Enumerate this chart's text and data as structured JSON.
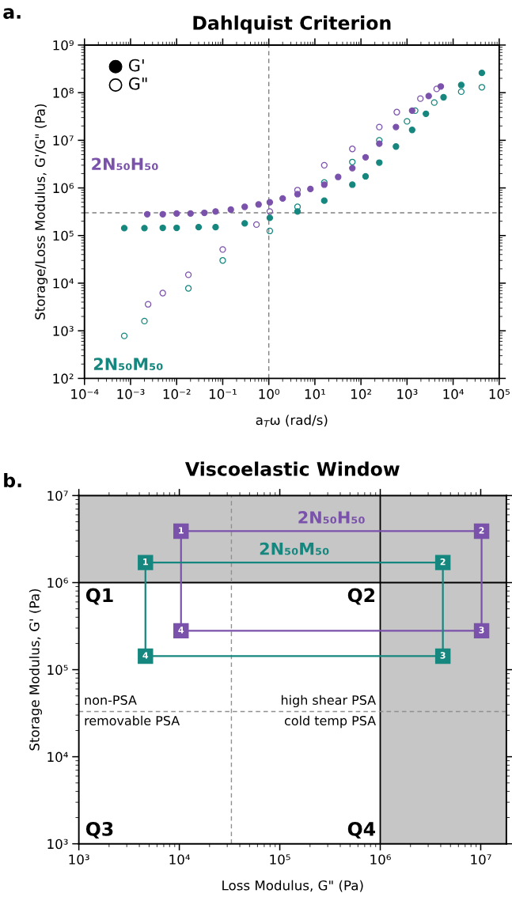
{
  "chart_data": [
    {
      "type": "scatter",
      "title": "Dahlquist Criterion",
      "xlabel": "a$_{T}$ω (rad/s)",
      "ylabel": "Storage/Loss Modulus, G'/G\" (Pa)",
      "log": "xy",
      "marker": "circle",
      "xlim": [
        0.0001,
        100000.0
      ],
      "ylim": [
        100.0,
        1000000000.0
      ],
      "xticks": [
        {
          "value": 0.0001,
          "label": "10⁻⁴"
        },
        {
          "value": 0.001,
          "label": "10⁻³"
        },
        {
          "value": 0.01,
          "label": "10⁻²"
        },
        {
          "value": 0.1,
          "label": "10⁻¹"
        },
        {
          "value": 1,
          "label": "10⁰"
        },
        {
          "value": 10,
          "label": "10¹"
        },
        {
          "value": 100,
          "label": "10²"
        },
        {
          "value": 1000,
          "label": "10³"
        },
        {
          "value": 10000.0,
          "label": "10⁴"
        },
        {
          "value": 100000.0,
          "label": "10⁵"
        }
      ],
      "yticks": [
        {
          "value": 100.0,
          "label": "10²"
        },
        {
          "value": 1000.0,
          "label": "10³"
        },
        {
          "value": 10000.0,
          "label": "10⁴"
        },
        {
          "value": 100000.0,
          "label": "10⁵"
        },
        {
          "value": 1000000.0,
          "label": "10⁶"
        },
        {
          "value": 10000000.0,
          "label": "10⁷"
        },
        {
          "value": 100000000.0,
          "label": "10⁸"
        },
        {
          "value": 1000000000.0,
          "label": "10⁹"
        }
      ],
      "ref_lines": [
        {
          "axis": "x",
          "value": 1,
          "color": "#808080",
          "line_style": "dashed"
        },
        {
          "axis": "y",
          "value": 300000.0,
          "color": "#808080",
          "line_style": "dashed"
        }
      ],
      "annotations": [
        "a.",
        "G'",
        "G\""
      ],
      "series": [
        {
          "name": "2N₅₀H₅₀",
          "color": "#7b52ab",
          "x": [
            0.0023,
            0.005,
            0.01,
            0.02,
            0.04,
            0.07,
            0.15,
            0.3,
            0.6,
            1.05,
            2,
            4.2,
            8,
            16,
            32,
            65,
            126,
            250,
            575,
            1290,
            2950,
            5400
          ],
          "values": [
            280000.0,
            280000.0,
            290000.0,
            290000.0,
            300000.0,
            320000.0,
            350000.0,
            400000.0,
            450000.0,
            500000.0,
            600000.0,
            740000.0,
            950000.0,
            1170000.0,
            1700000.0,
            2600000.0,
            4400000.0,
            8500000.0,
            19000000.0,
            42000000.0,
            85000000.0,
            135000000.0
          ]
        },
        {
          "color": "#7b52ab",
          "x": [
            0.0024,
            0.005,
            0.018,
            0.1,
            0.54,
            1.05,
            4.2,
            16,
            65,
            250,
            600,
            1950,
            4400
          ],
          "values": [
            3600.0,
            6200.0,
            15000.0,
            51000.0,
            170000.0,
            320000.0,
            900000.0,
            3000000.0,
            6600000.0,
            19000000.0,
            39000000.0,
            75000000.0,
            120000000.0
          ]
        },
        {
          "name": "2N₅₀M₅₀",
          "color": "#16877f",
          "x": [
            0.00073,
            0.002,
            0.005,
            0.01,
            0.03,
            0.07,
            0.3,
            1.05,
            4.2,
            16,
            65,
            126,
            250,
            575,
            1290,
            2570,
            6200,
            15000,
            42000
          ],
          "values": [
            143000.0,
            143000.0,
            145000.0,
            145000.0,
            150000.0,
            150000.0,
            180000.0,
            235000.0,
            320000.0,
            540000.0,
            1170000.0,
            1750000.0,
            3400000.0,
            7400000.0,
            16500000.0,
            36000000.0,
            80000000.0,
            145000000.0,
            260000000.0
          ]
        },
        {
          "color": "#16877f",
          "x": [
            0.00073,
            0.002,
            0.018,
            0.1,
            1.05,
            4.2,
            16,
            65,
            250,
            1000,
            1500,
            3900,
            15000,
            42000
          ],
          "values": [
            780,
            1600,
            7800.0,
            30000.0,
            125000.0,
            400000.0,
            1300000.0,
            3500000.0,
            10000000.0,
            25000000.0,
            42000000.0,
            62000000.0,
            105000000.0,
            130000000.0
          ]
        }
      ]
    },
    {
      "type": "line",
      "title": "Viscoelastic Window",
      "xlabel": "Loss Modulus, G\" (Pa)",
      "ylabel": "Storage Modulus, G' (Pa)",
      "log": "xy",
      "marker": "square",
      "xlim": [
        1000.0,
        18000000.0
      ],
      "ylim": [
        1000.0,
        10000000.0
      ],
      "xticks": [
        {
          "value": 1000.0,
          "label": "10³"
        },
        {
          "value": 10000.0,
          "label": "10⁴"
        },
        {
          "value": 100000.0,
          "label": "10⁵"
        },
        {
          "value": 1000000.0,
          "label": "10⁶"
        },
        {
          "value": 10000000.0,
          "label": "10⁷"
        }
      ],
      "yticks": [
        {
          "value": 1000.0,
          "label": "10³"
        },
        {
          "value": 10000.0,
          "label": "10⁴"
        },
        {
          "value": 100000.0,
          "label": "10⁵"
        },
        {
          "value": 1000000.0,
          "label": "10⁶"
        },
        {
          "value": 10000000.0,
          "label": "10⁷"
        }
      ],
      "bands": [
        {
          "axis": "y",
          "from": 1000000.0,
          "to": 10000000.0,
          "color": "#c6c6c6"
        },
        {
          "axis": "x",
          "from": 1000000.0,
          "to": 18000000.0,
          "color": "#c6c6c6"
        }
      ],
      "ref_lines": [
        {
          "axis": "x",
          "value": 1000000.0,
          "color": "#000000",
          "line_style": "solid"
        },
        {
          "axis": "y",
          "value": 1000000.0,
          "color": "#000000",
          "line_style": "solid"
        },
        {
          "axis": "x",
          "value": 33000.0,
          "color": "#909090",
          "line_style": "dashed"
        },
        {
          "axis": "y",
          "value": 33000.0,
          "color": "#909090",
          "line_style": "dashed"
        }
      ],
      "annotations": [
        "b.",
        "Q1",
        "Q2",
        "Q3",
        "Q4",
        "non-PSA",
        "high shear PSA",
        "removable PSA",
        "cold temp PSA",
        {
          "text": "1",
          "x": 10400.0,
          "y": 3900000.0
        },
        {
          "text": "2",
          "x": 10200000.0,
          "y": 3900000.0
        },
        {
          "text": "3",
          "x": 10200000.0,
          "y": 280000.0
        },
        {
          "text": "4",
          "x": 10400.0,
          "y": 280000.0
        },
        {
          "text": "1",
          "x": 4600.0,
          "y": 1700000.0
        },
        {
          "text": "2",
          "x": 4200000.0,
          "y": 1700000.0
        },
        {
          "text": "3",
          "x": 4200000.0,
          "y": 143000.0
        },
        {
          "text": "4",
          "x": 4600.0,
          "y": 143000.0
        }
      ],
      "series": [
        {
          "name": "2N₅₀H₅₀",
          "color": "#7b52ab",
          "x": [
            10400.0,
            10200000.0,
            10200000.0,
            10400.0
          ],
          "values": [
            3900000.0,
            3900000.0,
            280000.0,
            280000.0
          ]
        },
        {
          "name": "2N₅₀M₅₀",
          "color": "#16877f",
          "x": [
            4600.0,
            4200000.0,
            4200000.0,
            4600.0
          ],
          "values": [
            1700000.0,
            1700000.0,
            143000.0,
            143000.0
          ]
        }
      ]
    }
  ]
}
